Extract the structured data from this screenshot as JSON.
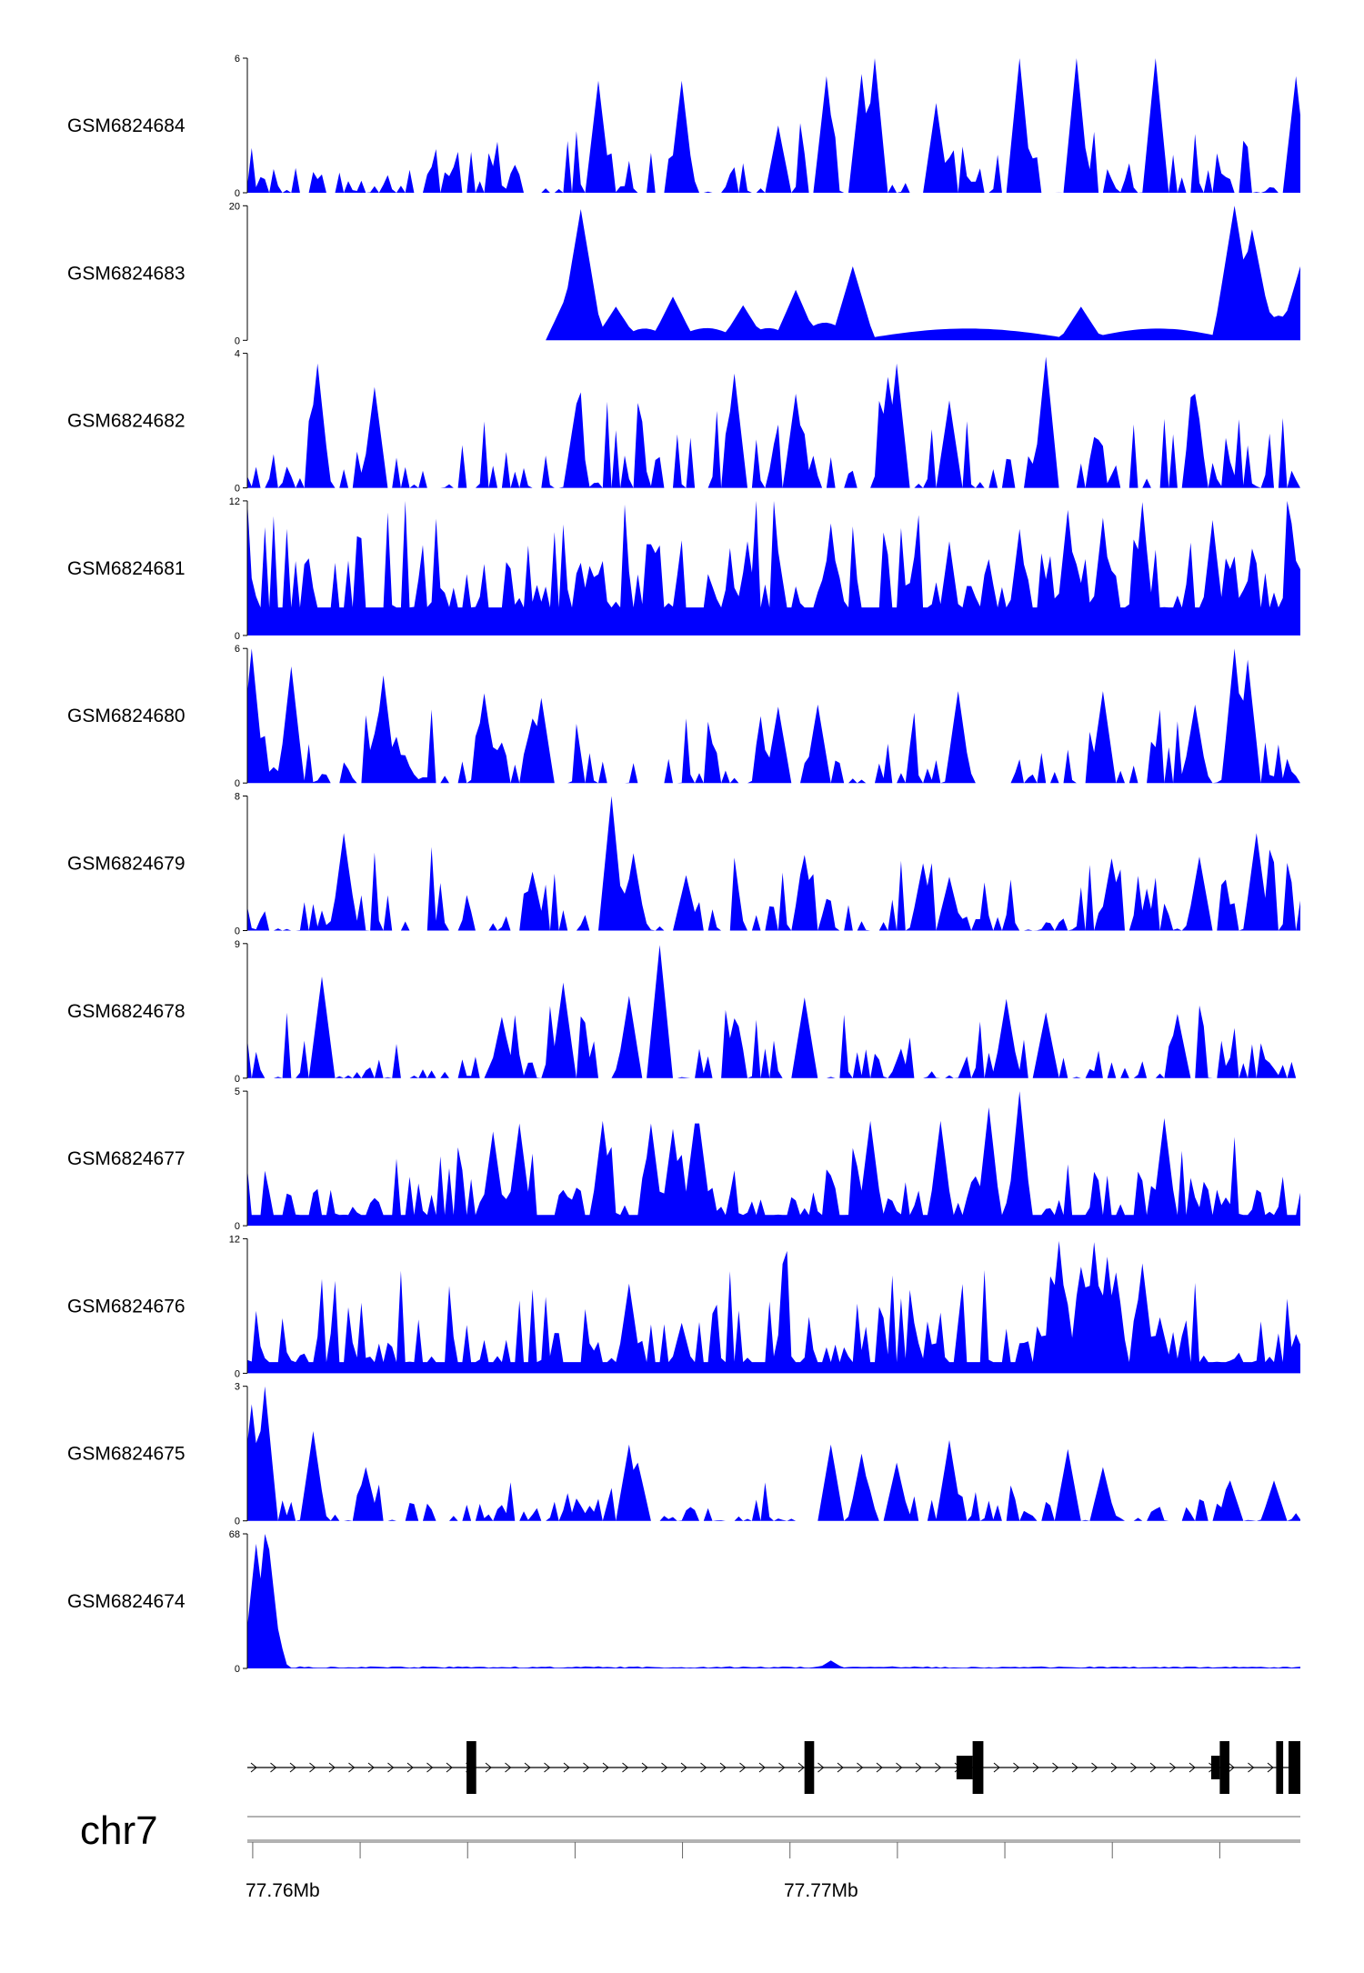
{
  "chart_data": {
    "type": "area",
    "chromosome": "chr7",
    "x_range": [
      77.7559,
      77.7755
    ],
    "x_unit": "Mb",
    "x_tick_labels": [
      "77.76Mb",
      "77.77Mb"
    ],
    "colors": {
      "signal": "#0000ff",
      "axis": "#000000",
      "gene": "#000000"
    },
    "gene_model": {
      "strand": "+",
      "exons": [
        {
          "start": 77.75998,
          "end": 77.76016,
          "height": "tall"
        },
        {
          "start": 77.76627,
          "end": 77.76645,
          "height": "tall"
        },
        {
          "start": 77.7691,
          "end": 77.7694,
          "height": "short"
        },
        {
          "start": 77.7694,
          "end": 77.7696,
          "height": "tall"
        },
        {
          "start": 77.77384,
          "end": 77.774,
          "height": "short"
        },
        {
          "start": 77.774,
          "end": 77.77418,
          "height": "tall"
        },
        {
          "start": 77.77505,
          "end": 77.77518,
          "height": "tall"
        },
        {
          "start": 77.77528,
          "end": 77.7755,
          "height": "tall"
        }
      ]
    },
    "series": [
      {
        "name": "GSM6824684",
        "ymax": 6,
        "y_tick_labels": [
          "6",
          "0"
        ],
        "seed": 11,
        "base": 0.0,
        "amp": 1.0,
        "peaks": [
          [
            77.7624,
            5.0
          ],
          [
            77.7676,
            6.0
          ],
          [
            77.7673,
            5.3
          ],
          [
            77.7667,
            5.2
          ],
          [
            77.7703,
            6.0
          ],
          [
            77.7713,
            6.0
          ],
          [
            77.7728,
            6.0
          ],
          [
            77.7754,
            5.2
          ],
          [
            77.764,
            5.0
          ],
          [
            77.7658,
            3.0
          ],
          [
            77.7687,
            4.0
          ]
        ]
      },
      {
        "name": "GSM6824683",
        "ymax": 20,
        "y_tick_labels": [
          "20",
          "0"
        ],
        "seed": 23,
        "base": 0.0,
        "amp": 0.8,
        "sparse": true,
        "peaks": [
          [
            77.7604,
            0.0
          ],
          [
            77.7619,
            7.0
          ],
          [
            77.7621,
            19.5
          ],
          [
            77.7638,
            6.5
          ],
          [
            77.7661,
            7.5
          ],
          [
            77.7672,
            11.0
          ],
          [
            77.7714,
            5.0
          ],
          [
            77.7743,
            20.0
          ],
          [
            77.7746,
            16.5
          ],
          [
            77.7747,
            10.5
          ],
          [
            77.7755,
            11.0
          ],
          [
            77.7624,
            0.0
          ],
          [
            77.7628,
            5.0
          ],
          [
            77.7651,
            5.2
          ]
        ]
      },
      {
        "name": "GSM6824682",
        "ymax": 4,
        "y_tick_labels": [
          "4",
          "0"
        ],
        "seed": 37,
        "base": 0.0,
        "amp": 1.6,
        "peaks": [
          [
            77.7572,
            3.7
          ],
          [
            77.762,
            2.5
          ],
          [
            77.765,
            3.4
          ],
          [
            77.7661,
            2.8
          ],
          [
            77.7678,
            3.3
          ],
          [
            77.768,
            3.7
          ],
          [
            77.7708,
            3.9
          ],
          [
            77.769,
            2.6
          ],
          [
            77.7735,
            2.8
          ],
          [
            77.7583,
            3.0
          ]
        ]
      },
      {
        "name": "GSM6824681",
        "ymax": 12,
        "y_tick_labels": [
          "12",
          "0"
        ],
        "seed": 41,
        "base": 2.5,
        "amp": 2.0,
        "peaks": [
          [
            77.7596,
            3.8
          ],
          [
            77.7603,
            3.0
          ],
          [
            77.7613,
            4.5
          ],
          [
            77.7635,
            5.5
          ],
          [
            77.7652,
            8.4
          ],
          [
            77.7668,
            10.0
          ],
          [
            77.769,
            8.4
          ],
          [
            77.7703,
            9.5
          ],
          [
            77.7712,
            11.2
          ],
          [
            77.7718,
            10.5
          ],
          [
            77.7726,
            11.5
          ],
          [
            77.7739,
            10.3
          ],
          [
            77.7753,
            10.0
          ],
          [
            77.7658,
            7.5
          ],
          [
            77.7683,
            7.0
          ],
          [
            77.7697,
            6.8
          ]
        ]
      },
      {
        "name": "GSM6824680",
        "ymax": 6,
        "y_tick_labels": [
          "6",
          "0"
        ],
        "seed": 53,
        "base": 0.0,
        "amp": 1.2,
        "peaks": [
          [
            77.756,
            6.0
          ],
          [
            77.7567,
            5.2
          ],
          [
            77.7584,
            4.8
          ],
          [
            77.7603,
            4.0
          ],
          [
            77.7614,
            3.8
          ],
          [
            77.7691,
            4.1
          ],
          [
            77.7718,
            4.1
          ],
          [
            77.7743,
            6.0
          ],
          [
            77.7745,
            5.5
          ],
          [
            77.7658,
            3.4
          ],
          [
            77.7665,
            3.5
          ],
          [
            77.7735,
            3.5
          ]
        ]
      },
      {
        "name": "GSM6824679",
        "ymax": 8,
        "y_tick_labels": [
          "8",
          "0"
        ],
        "seed": 67,
        "base": 0.0,
        "amp": 1.3,
        "peaks": [
          [
            77.7577,
            5.8
          ],
          [
            77.7627,
            8.0
          ],
          [
            77.7631,
            4.6
          ],
          [
            77.7612,
            3.5
          ],
          [
            77.7641,
            3.3
          ],
          [
            77.7663,
            4.5
          ],
          [
            77.772,
            4.3
          ],
          [
            77.7736,
            4.4
          ],
          [
            77.7747,
            5.8
          ],
          [
            77.7685,
            4.0
          ],
          [
            77.769,
            3.2
          ]
        ]
      },
      {
        "name": "GSM6824678",
        "ymax": 9,
        "y_tick_labels": [
          "9",
          "0"
        ],
        "seed": 79,
        "base": 0.0,
        "amp": 1.3,
        "peaks": [
          [
            77.7573,
            6.8
          ],
          [
            77.7618,
            6.4
          ],
          [
            77.763,
            5.5
          ],
          [
            77.7636,
            8.9
          ],
          [
            77.7663,
            5.4
          ],
          [
            77.77,
            5.3
          ],
          [
            77.7708,
            4.4
          ],
          [
            77.7732,
            4.3
          ],
          [
            77.765,
            4.0
          ],
          [
            77.7606,
            4.1
          ]
        ]
      },
      {
        "name": "GSM6824677",
        "ymax": 5,
        "y_tick_labels": [
          "5",
          "0"
        ],
        "seed": 83,
        "base": 0.4,
        "amp": 1.2,
        "peaks": [
          [
            77.7605,
            3.5
          ],
          [
            77.7634,
            3.8
          ],
          [
            77.7638,
            3.6
          ],
          [
            77.7642,
            3.8
          ],
          [
            77.7643,
            3.8
          ],
          [
            77.7675,
            3.9
          ],
          [
            77.7688,
            3.9
          ],
          [
            77.7697,
            4.4
          ],
          [
            77.7703,
            5.0
          ],
          [
            77.773,
            4.0
          ],
          [
            77.761,
            3.8
          ],
          [
            77.7625,
            3.9
          ]
        ]
      },
      {
        "name": "GSM6824676",
        "ymax": 12,
        "y_tick_labels": [
          "12",
          "0"
        ],
        "seed": 97,
        "base": 1.0,
        "amp": 1.6,
        "peaks": [
          [
            77.763,
            8.0
          ],
          [
            77.764,
            4.5
          ],
          [
            77.771,
            11.8
          ],
          [
            77.7714,
            9.5
          ],
          [
            77.7717,
            11.7
          ],
          [
            77.7719,
            10.4
          ],
          [
            77.7721,
            9.0
          ],
          [
            77.7726,
            9.8
          ],
          [
            77.7729,
            5.0
          ],
          [
            77.7754,
            3.5
          ],
          [
            77.7659,
            4.5
          ],
          [
            77.7683,
            4.0
          ]
        ]
      },
      {
        "name": "GSM6824675",
        "ymax": 3,
        "y_tick_labels": [
          "3",
          "0"
        ],
        "seed": 101,
        "base": 0.0,
        "amp": 0.6,
        "peaks": [
          [
            77.7562,
            3.0
          ],
          [
            77.756,
            2.6
          ],
          [
            77.7571,
            2.0
          ],
          [
            77.7581,
            1.2
          ],
          [
            77.763,
            1.7
          ],
          [
            77.7632,
            1.3
          ],
          [
            77.7668,
            1.7
          ],
          [
            77.7673,
            1.5
          ],
          [
            77.768,
            1.3
          ],
          [
            77.769,
            1.8
          ],
          [
            77.7712,
            1.6
          ],
          [
            77.7718,
            1.2
          ],
          [
            77.7742,
            0.9
          ],
          [
            77.775,
            0.9
          ]
        ]
      },
      {
        "name": "GSM6824674",
        "ymax": 68,
        "y_tick_labels": [
          "68",
          "0"
        ],
        "seed": 113,
        "base": 1.0,
        "amp": 1.2,
        "flat": true,
        "peaks": [
          [
            77.7561,
            63.0
          ],
          [
            77.7562,
            68.0
          ],
          [
            77.7563,
            60.0
          ],
          [
            77.7564,
            30.0
          ],
          [
            77.7565,
            6.0
          ],
          [
            77.7668,
            4.0
          ]
        ]
      }
    ]
  }
}
